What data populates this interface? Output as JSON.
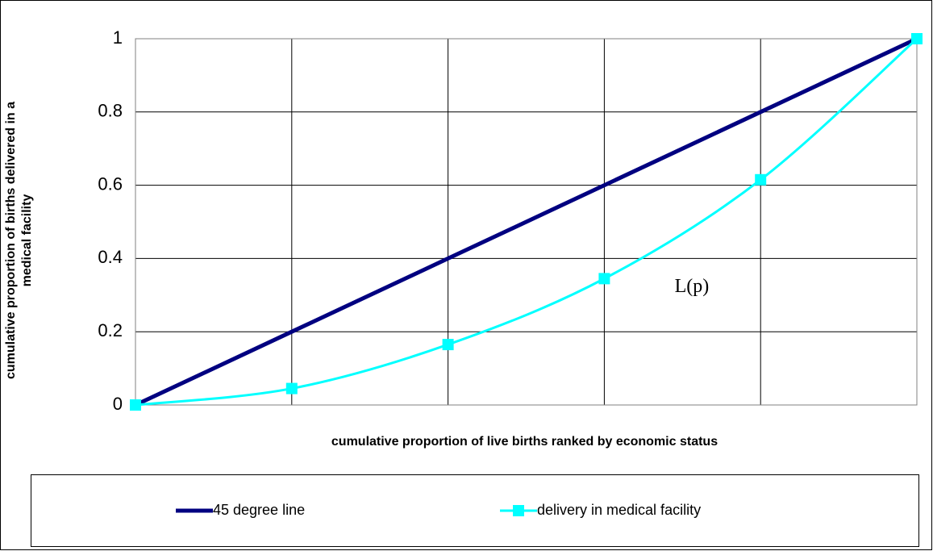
{
  "chart_data": {
    "type": "line",
    "xlabel": "cumulative proportion of live births ranked by economic status",
    "ylabel": [
      "cumulative proportion of births delivered in a",
      "medical facility"
    ],
    "x": [
      0,
      0.2,
      0.4,
      0.6,
      0.8,
      1
    ],
    "xlim": [
      0,
      1
    ],
    "ylim": [
      0,
      1
    ],
    "yticks": [
      0,
      0.2,
      0.4,
      0.6,
      0.8,
      1
    ],
    "grid": true,
    "legend": "bottom",
    "annotations": [
      {
        "text": "L(p)",
        "x": 0.69,
        "y": 0.32
      }
    ],
    "series": [
      {
        "name": "45 degree line",
        "color": "#000080",
        "values": [
          0,
          0.2,
          0.4,
          0.6,
          0.8,
          1
        ],
        "marker": "none",
        "smooth": false
      },
      {
        "name": "delivery in medical facility",
        "color": "#00ffff",
        "values": [
          0,
          0.045,
          0.165,
          0.345,
          0.615,
          1
        ],
        "marker": "square",
        "smooth": true
      }
    ]
  }
}
